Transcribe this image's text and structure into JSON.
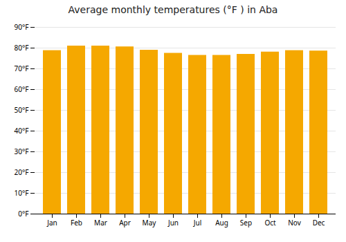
{
  "chart_data": {
    "type": "bar",
    "title": "Average monthly temperatures (°F ) in Aba",
    "categories": [
      "Jan",
      "Feb",
      "Mar",
      "Apr",
      "May",
      "Jun",
      "Jul",
      "Aug",
      "Sep",
      "Oct",
      "Nov",
      "Dec"
    ],
    "values": [
      78.8,
      81.0,
      81.0,
      80.6,
      79.0,
      77.5,
      76.5,
      76.5,
      77.0,
      78.1,
      78.8,
      78.6
    ],
    "color": "#F5A800",
    "ylim": [
      0,
      90
    ],
    "yticks": [
      {
        "value": 0,
        "label": "0°F"
      },
      {
        "value": 10,
        "label": "10°F"
      },
      {
        "value": 20,
        "label": "20°F"
      },
      {
        "value": 30,
        "label": "30°F"
      },
      {
        "value": 40,
        "label": "40°F"
      },
      {
        "value": 50,
        "label": "50°F"
      },
      {
        "value": 60,
        "label": "60°F"
      },
      {
        "value": 70,
        "label": "70°F"
      },
      {
        "value": 80,
        "label": "80°F"
      },
      {
        "value": 90,
        "label": "90°F"
      }
    ],
    "grid": true
  }
}
